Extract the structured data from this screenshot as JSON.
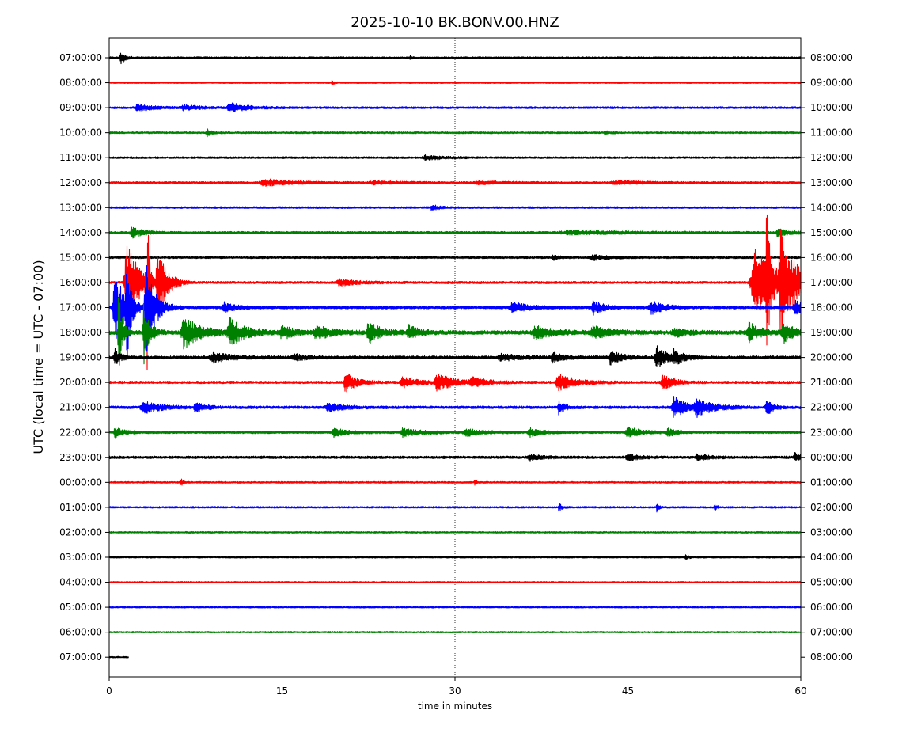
{
  "chart_data": {
    "type": "line",
    "title": "2025-10-10 BK.BONV.00.HNZ",
    "xlabel": "time in minutes",
    "ylabel": "UTC (local time = UTC - 07:00)",
    "xlim": [
      0,
      60
    ],
    "xticks": [
      0,
      15,
      30,
      45,
      60
    ],
    "xtick_labels": [
      "0",
      "15",
      "30",
      "45",
      "60"
    ],
    "grid": "vertical dotted at x ticks",
    "left_labels": [
      "07:00:00",
      "08:00:00",
      "09:00:00",
      "10:00:00",
      "11:00:00",
      "12:00:00",
      "13:00:00",
      "14:00:00",
      "15:00:00",
      "16:00:00",
      "17:00:00",
      "18:00:00",
      "19:00:00",
      "20:00:00",
      "21:00:00",
      "22:00:00",
      "23:00:00",
      "00:00:00",
      "01:00:00",
      "02:00:00",
      "03:00:00",
      "04:00:00",
      "05:00:00",
      "06:00:00",
      "07:00:00"
    ],
    "right_labels": [
      "08:00:00",
      "09:00:00",
      "10:00:00",
      "11:00:00",
      "12:00:00",
      "13:00:00",
      "14:00:00",
      "15:00:00",
      "16:00:00",
      "17:00:00",
      "18:00:00",
      "19:00:00",
      "20:00:00",
      "21:00:00",
      "22:00:00",
      "23:00:00",
      "00:00:00",
      "01:00:00",
      "02:00:00",
      "03:00:00",
      "04:00:00",
      "05:00:00",
      "06:00:00",
      "07:00:00",
      "08:00:00"
    ],
    "colors": [
      "#000000",
      "#ff0000",
      "#0000ff",
      "#008000"
    ],
    "traces": [
      {
        "row": 0,
        "end_min": 60,
        "noise": 1.2,
        "events": [
          [
            1.0,
            8,
            0.4
          ],
          [
            26.1,
            2,
            0.2
          ]
        ]
      },
      {
        "row": 1,
        "end_min": 60,
        "noise": 1.0,
        "events": [
          [
            19.3,
            3,
            0.2
          ]
        ]
      },
      {
        "row": 2,
        "end_min": 60,
        "noise": 1.3,
        "events": [
          [
            2.5,
            4,
            1.5
          ],
          [
            6.5,
            3,
            1.5
          ],
          [
            10.5,
            6,
            1.5
          ]
        ]
      },
      {
        "row": 3,
        "end_min": 60,
        "noise": 1.2,
        "events": [
          [
            8.5,
            4,
            0.5
          ],
          [
            43.0,
            2,
            0.5
          ]
        ]
      },
      {
        "row": 4,
        "end_min": 60,
        "noise": 1.2,
        "events": [
          [
            27.5,
            3,
            1.5
          ]
        ]
      },
      {
        "row": 5,
        "end_min": 60,
        "noise": 1.3,
        "events": [
          [
            13.5,
            4,
            2.5
          ],
          [
            23.0,
            2,
            2.0
          ],
          [
            32.0,
            2,
            2.0
          ],
          [
            44.0,
            2,
            3.0
          ]
        ]
      },
      {
        "row": 6,
        "end_min": 60,
        "noise": 1.2,
        "events": [
          [
            28.0,
            3,
            0.8
          ]
        ]
      },
      {
        "row": 7,
        "end_min": 60,
        "noise": 1.5,
        "events": [
          [
            2.0,
            6,
            1.0
          ],
          [
            40.0,
            2,
            5.0
          ],
          [
            58.0,
            4,
            1.0
          ]
        ]
      },
      {
        "row": 8,
        "end_min": 60,
        "noise": 1.4,
        "events": [
          [
            38.5,
            4,
            0.5
          ],
          [
            42.0,
            3,
            1.5
          ]
        ]
      },
      {
        "row": 9,
        "end_min": 60,
        "noise": 1.5,
        "events": [
          [
            1.5,
            55,
            1.2
          ],
          [
            3.3,
            140,
            0.15
          ],
          [
            4.2,
            40,
            0.8
          ],
          [
            20.0,
            4,
            1.5
          ],
          [
            56.0,
            45,
            2.0
          ],
          [
            57.0,
            95,
            0.25
          ],
          [
            58.3,
            60,
            1.2
          ]
        ]
      },
      {
        "row": 10,
        "end_min": 60,
        "noise": 1.8,
        "events": [
          [
            0.5,
            45,
            1.0
          ],
          [
            1.5,
            70,
            0.3
          ],
          [
            3.2,
            60,
            0.8
          ],
          [
            10.0,
            6,
            1.0
          ],
          [
            35.0,
            6,
            1.5
          ],
          [
            42.0,
            8,
            1.0
          ],
          [
            47.0,
            8,
            1.2
          ],
          [
            59.5,
            8,
            1.0
          ]
        ]
      },
      {
        "row": 11,
        "end_min": 60,
        "noise": 2.5,
        "events": [
          [
            0.8,
            65,
            0.3
          ],
          [
            3.0,
            40,
            0.5
          ],
          [
            6.5,
            20,
            1.5
          ],
          [
            10.5,
            16,
            1.5
          ],
          [
            15.0,
            8,
            1.0
          ],
          [
            18.0,
            8,
            1.5
          ],
          [
            22.5,
            14,
            1.0
          ],
          [
            26.0,
            8,
            1.0
          ],
          [
            37.0,
            8,
            1.5
          ],
          [
            42.0,
            8,
            1.5
          ],
          [
            49.0,
            6,
            1.0
          ],
          [
            55.5,
            12,
            1.0
          ],
          [
            58.5,
            12,
            1.0
          ]
        ]
      },
      {
        "row": 12,
        "end_min": 60,
        "noise": 2.0,
        "events": [
          [
            0.5,
            10,
            0.5
          ],
          [
            9.0,
            6,
            1.5
          ],
          [
            16.0,
            4,
            1.0
          ],
          [
            34.0,
            4,
            1.5
          ],
          [
            38.5,
            6,
            1.0
          ],
          [
            43.5,
            8,
            1.0
          ],
          [
            47.5,
            14,
            1.0
          ],
          [
            49.0,
            8,
            0.8
          ]
        ]
      },
      {
        "row": 13,
        "end_min": 60,
        "noise": 1.6,
        "events": [
          [
            20.5,
            12,
            1.0
          ],
          [
            25.5,
            6,
            1.5
          ],
          [
            28.5,
            10,
            1.5
          ],
          [
            31.5,
            5,
            1.5
          ],
          [
            39.0,
            10,
            1.5
          ],
          [
            48.0,
            10,
            1.0
          ]
        ]
      },
      {
        "row": 14,
        "end_min": 60,
        "noise": 1.7,
        "events": [
          [
            3.0,
            8,
            1.5
          ],
          [
            7.5,
            5,
            1.0
          ],
          [
            19.0,
            5,
            1.5
          ],
          [
            39.0,
            8,
            0.5
          ],
          [
            49.0,
            14,
            1.0
          ],
          [
            51.0,
            10,
            1.5
          ],
          [
            57.0,
            12,
            0.5
          ]
        ]
      },
      {
        "row": 15,
        "end_min": 60,
        "noise": 1.6,
        "events": [
          [
            0.5,
            6,
            0.8
          ],
          [
            19.5,
            5,
            1.0
          ],
          [
            25.5,
            5,
            1.5
          ],
          [
            31.0,
            4,
            1.5
          ],
          [
            36.5,
            5,
            1.0
          ],
          [
            45.0,
            8,
            1.0
          ],
          [
            48.5,
            5,
            0.8
          ]
        ]
      },
      {
        "row": 16,
        "end_min": 60,
        "noise": 1.6,
        "events": [
          [
            36.5,
            4,
            1.0
          ],
          [
            45.0,
            4,
            1.0
          ],
          [
            51.0,
            4,
            1.0
          ],
          [
            59.5,
            5,
            0.8
          ]
        ]
      },
      {
        "row": 17,
        "end_min": 60,
        "noise": 1.1,
        "events": [
          [
            6.2,
            5,
            0.2
          ],
          [
            31.7,
            4,
            0.2
          ]
        ]
      },
      {
        "row": 18,
        "end_min": 60,
        "noise": 1.1,
        "events": [
          [
            39.0,
            5,
            0.3
          ],
          [
            47.5,
            6,
            0.2
          ],
          [
            52.5,
            6,
            0.2
          ]
        ]
      },
      {
        "row": 19,
        "end_min": 60,
        "noise": 1.0,
        "events": []
      },
      {
        "row": 20,
        "end_min": 60,
        "noise": 1.1,
        "events": [
          [
            50.0,
            3,
            0.3
          ]
        ]
      },
      {
        "row": 21,
        "end_min": 60,
        "noise": 1.0,
        "events": []
      },
      {
        "row": 22,
        "end_min": 60,
        "noise": 1.0,
        "events": []
      },
      {
        "row": 23,
        "end_min": 60,
        "noise": 1.0,
        "events": []
      },
      {
        "row": 24,
        "end_min": 1.7,
        "noise": 1.0,
        "events": []
      }
    ]
  }
}
